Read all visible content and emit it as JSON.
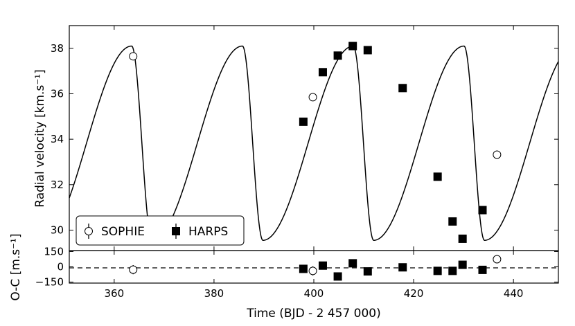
{
  "chart_data": [
    {
      "type": "line",
      "panel": "main",
      "ylabel": "Radial velocity [km.s⁻¹]",
      "xlim": [
        351,
        449
      ],
      "ylim": [
        29.1,
        39.0
      ],
      "xticks": [
        360,
        380,
        400,
        420,
        440
      ],
      "yticks": [
        30,
        32,
        34,
        36,
        38
      ],
      "ytick_labels": [
        "30",
        "32",
        "34",
        "36",
        "38"
      ],
      "legend": {
        "position": "lower-left",
        "entries": [
          "SOPHIE",
          "HARPS"
        ]
      },
      "model": {
        "kind": "keplerian",
        "period_days": 22.2,
        "min_time": 389.8,
        "max_time": 407.9,
        "v_min": 29.55,
        "v_max": 38.1,
        "v_offset": 34.35
      },
      "series": [
        {
          "name": "SOPHIE",
          "marker": "open-circle",
          "x": [
            363.8,
            399.8,
            436.7
          ],
          "y": [
            37.65,
            35.85,
            33.32
          ]
        },
        {
          "name": "HARPS",
          "marker": "filled-square",
          "x": [
            397.9,
            401.8,
            404.8,
            407.8,
            410.8,
            417.8,
            424.8,
            427.8,
            429.8,
            433.8
          ],
          "y": [
            34.77,
            36.95,
            37.68,
            38.1,
            37.92,
            36.25,
            32.35,
            30.38,
            29.62,
            30.88
          ]
        }
      ]
    },
    {
      "type": "scatter",
      "panel": "residuals",
      "xlabel": "Time (BJD - 2 457 000)",
      "ylabel": "O-C [m.s⁻¹]",
      "xlim": [
        351,
        449
      ],
      "ylim": [
        -160,
        160
      ],
      "xticks": [
        360,
        380,
        400,
        420,
        440
      ],
      "xtick_labels": [
        "360",
        "380",
        "400",
        "420",
        "440"
      ],
      "yticks": [
        -150,
        0,
        150
      ],
      "ytick_labels": [
        "−150",
        "0",
        "150"
      ],
      "zero_line": "dashed",
      "series": [
        {
          "name": "SOPHIE",
          "marker": "open-circle",
          "x": [
            363.8,
            399.8,
            436.7
          ],
          "y": [
            -28,
            -40,
            75
          ],
          "err": [
            45,
            45,
            40
          ]
        },
        {
          "name": "HARPS",
          "marker": "filled-square",
          "x": [
            397.9,
            401.8,
            404.8,
            407.8,
            410.8,
            417.8,
            424.8,
            427.8,
            429.8,
            433.8
          ],
          "y": [
            -20,
            12,
            -95,
            35,
            -45,
            -5,
            -40,
            -40,
            20,
            -30
          ],
          "err": [
            18,
            18,
            18,
            18,
            18,
            18,
            18,
            18,
            22,
            18
          ]
        }
      ]
    }
  ]
}
